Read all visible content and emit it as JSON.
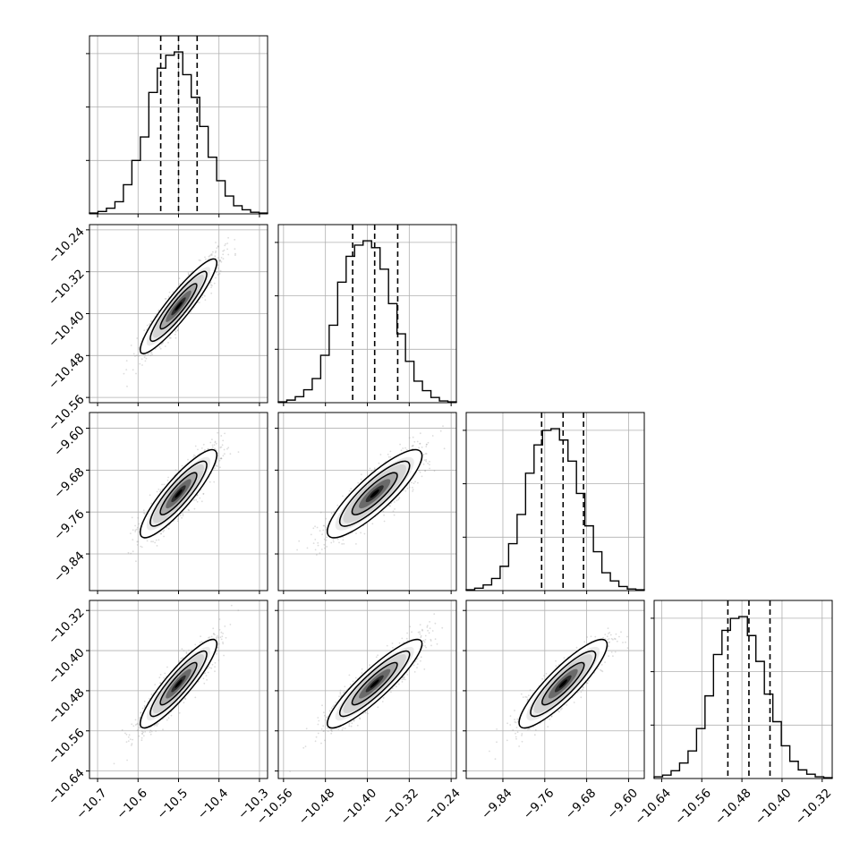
{
  "chart_data": {
    "type": "corner",
    "grid": true,
    "colors": {
      "line": "#000000",
      "grid": "#b0b0b0",
      "scatter": "#9a9a9a",
      "density": "#000000"
    },
    "parameters": [
      {
        "index": 0,
        "range": [
          -10.72,
          -10.28
        ],
        "median": -10.5,
        "q16": -10.544,
        "q84": -10.454,
        "ticks": [
          -10.7,
          -10.6,
          -10.5,
          -10.4,
          -10.3
        ],
        "tick_labels": [
          "−10.7",
          "−10.6",
          "−10.5",
          "−10.4",
          "−10.3"
        ]
      },
      {
        "index": 1,
        "range": [
          -10.57,
          -10.23
        ],
        "median": -10.386,
        "q16": -10.428,
        "q84": -10.342,
        "ticks": [
          -10.56,
          -10.48,
          -10.4,
          -10.32,
          -10.24
        ],
        "tick_labels": [
          "−10.56",
          "−10.48",
          "−10.40",
          "−10.32",
          "−10.24"
        ]
      },
      {
        "index": 2,
        "range": [
          -9.91,
          -9.57
        ],
        "median": -9.725,
        "q16": -9.766,
        "q84": -9.686,
        "ticks": [
          -9.84,
          -9.76,
          -9.68,
          -9.6
        ],
        "tick_labels": [
          "−9.84",
          "−9.76",
          "−9.68",
          "−9.60"
        ]
      },
      {
        "index": 3,
        "range": [
          -10.655,
          -10.3
        ],
        "median": -10.466,
        "q16": -10.508,
        "q84": -10.424,
        "ticks": [
          -10.64,
          -10.56,
          -10.48,
          -10.4,
          -10.32
        ],
        "tick_labels": [
          "−10.64",
          "−10.56",
          "−10.48",
          "−10.40",
          "−10.32"
        ]
      }
    ],
    "histograms": [
      {
        "param": 0,
        "counts": [
          1,
          3,
          7,
          15,
          36,
          66,
          95,
          150,
          180,
          196,
          200,
          172,
          144,
          108,
          70,
          41,
          22,
          10,
          5,
          2,
          1
        ]
      },
      {
        "param": 1,
        "counts": [
          1,
          3,
          7,
          15,
          28,
          55,
          90,
          140,
          170,
          183,
          188,
          180,
          155,
          115,
          80,
          48,
          25,
          14,
          6,
          2,
          1
        ]
      },
      {
        "param": 2,
        "counts": [
          1,
          3,
          7,
          15,
          30,
          58,
          94,
          145,
          180,
          198,
          200,
          186,
          160,
          120,
          80,
          48,
          22,
          12,
          5,
          2,
          1
        ]
      },
      {
        "param": 3,
        "counts": [
          2,
          4,
          9,
          18,
          32,
          58,
          96,
          144,
          172,
          186,
          188,
          166,
          136,
          98,
          66,
          38,
          20,
          10,
          5,
          2,
          1
        ]
      }
    ],
    "pairs": [
      {
        "x": 0,
        "y": 1,
        "correlation": 0.92
      },
      {
        "x": 0,
        "y": 2,
        "correlation": 0.88
      },
      {
        "x": 1,
        "y": 2,
        "correlation": 0.86
      },
      {
        "x": 0,
        "y": 3,
        "correlation": 0.9
      },
      {
        "x": 1,
        "y": 3,
        "correlation": 0.9
      },
      {
        "x": 2,
        "y": 3,
        "correlation": 0.88
      }
    ]
  }
}
